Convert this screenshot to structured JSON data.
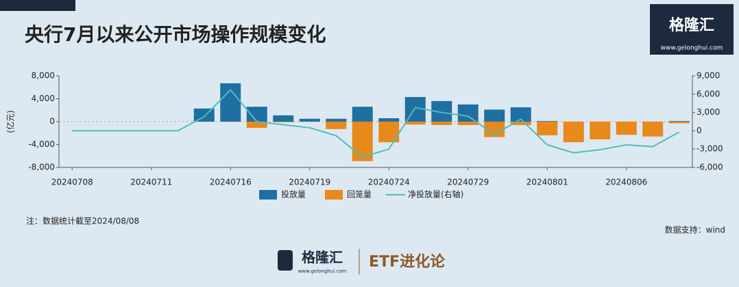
{
  "chart_data": {
    "type": "bar",
    "title": "央行7月以来公开市场操作规模变化",
    "y_label": "(亿元)",
    "categories": [
      "20240708",
      null,
      null,
      "20240711",
      null,
      null,
      "20240716",
      null,
      null,
      "20240719",
      null,
      null,
      "20240724",
      null,
      null,
      "20240729",
      null,
      null,
      "20240801",
      null,
      null,
      "20240806",
      null,
      null
    ],
    "series": [
      {
        "name": "投放量",
        "color": "#1f6fa3",
        "values": [
          0,
          0,
          0,
          0,
          0,
          2300,
          6700,
          2600,
          1100,
          500,
          500,
          2600,
          600,
          4300,
          3600,
          3000,
          2100,
          2500,
          100,
          0,
          0,
          0,
          0,
          100
        ]
      },
      {
        "name": "回笼量",
        "color": "#e8891c",
        "values": [
          0,
          0,
          0,
          0,
          0,
          0,
          0,
          -1100,
          -100,
          0,
          -1300,
          -6900,
          -3600,
          -500,
          -600,
          -600,
          -2700,
          -600,
          -2400,
          -3600,
          -3100,
          -2300,
          -2600,
          -300
        ]
      },
      {
        "name": "净投放量(右轴)",
        "color": "#4dbdbd",
        "type": "line",
        "axis": "y2",
        "values": [
          0,
          0,
          0,
          0,
          0,
          2300,
          6700,
          1500,
          1000,
          500,
          -800,
          -4300,
          -3000,
          3800,
          3000,
          2400,
          -600,
          1900,
          -2300,
          -3600,
          -3100,
          -2300,
          -2600,
          -200
        ]
      }
    ],
    "ylim": [
      -8000,
      8000
    ],
    "yticks": [
      {
        "value": 8000,
        "label": "8,000"
      },
      {
        "value": 4000,
        "label": "4,000"
      },
      0,
      {
        "value": -4000,
        "label": "-4,000"
      },
      {
        "value": -8000,
        "label": "-8,000"
      }
    ],
    "y2lim": [
      -6000,
      9000
    ],
    "y2ticks": [
      {
        "value": 9000,
        "label": "9,000"
      },
      {
        "value": 6000,
        "label": "6,000"
      },
      {
        "value": 3000,
        "label": "3,000"
      },
      0,
      {
        "value": -3000,
        "label": "-3,000"
      },
      {
        "value": -6000,
        "label": "-6,000"
      }
    ],
    "note": "注：数据统计截至2024/08/08",
    "source": "数据支持：wind"
  },
  "branding": {
    "logo": "格隆汇",
    "url": "www.gelonghui.com",
    "column": "ETF进化论"
  }
}
